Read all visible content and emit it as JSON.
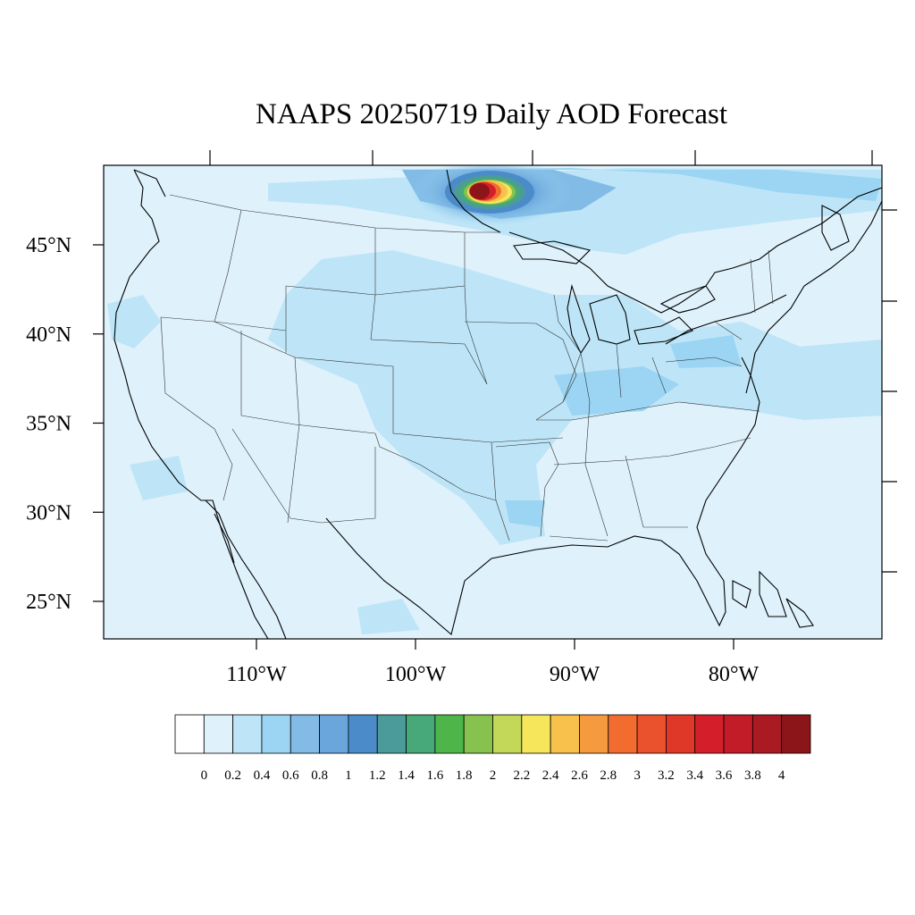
{
  "title": "NAAPS 20250719 Daily AOD Forecast",
  "map": {
    "background_color": "#dff1fb",
    "lat_labels": [
      {
        "value": 45,
        "text": "45°N"
      },
      {
        "value": 40,
        "text": "40°N"
      },
      {
        "value": 35,
        "text": "35°N"
      },
      {
        "value": 30,
        "text": "30°N"
      },
      {
        "value": 25,
        "text": "25°N"
      }
    ],
    "lon_labels": [
      {
        "value": -110,
        "text": "110°W"
      },
      {
        "value": -100,
        "text": "100°W"
      },
      {
        "value": -90,
        "text": "90°W"
      },
      {
        "value": -80,
        "text": "80°W"
      }
    ],
    "smoke_plume": {
      "center_lon": -96,
      "center_lat": 48.3,
      "peak_aod": 4
    }
  },
  "colorbar": {
    "colors": [
      "#ffffff",
      "#dff1fb",
      "#bde5f7",
      "#9bd5f3",
      "#82bce6",
      "#6aa6dc",
      "#4b8bc9",
      "#4c9b9b",
      "#47a87a",
      "#4db54a",
      "#86c24d",
      "#c3d758",
      "#f6e65c",
      "#f7c14b",
      "#f69a3f",
      "#f26b2f",
      "#ea512d",
      "#df3829",
      "#d41f2a",
      "#c11c27",
      "#a91a23",
      "#8c1519"
    ],
    "labels": [
      "0",
      "0.2",
      "0.4",
      "0.6",
      "0.8",
      "1",
      "1.2",
      "1.4",
      "1.6",
      "1.8",
      "2",
      "2.2",
      "2.4",
      "2.6",
      "2.8",
      "3",
      "3.2",
      "3.4",
      "3.6",
      "3.8",
      "4"
    ]
  }
}
